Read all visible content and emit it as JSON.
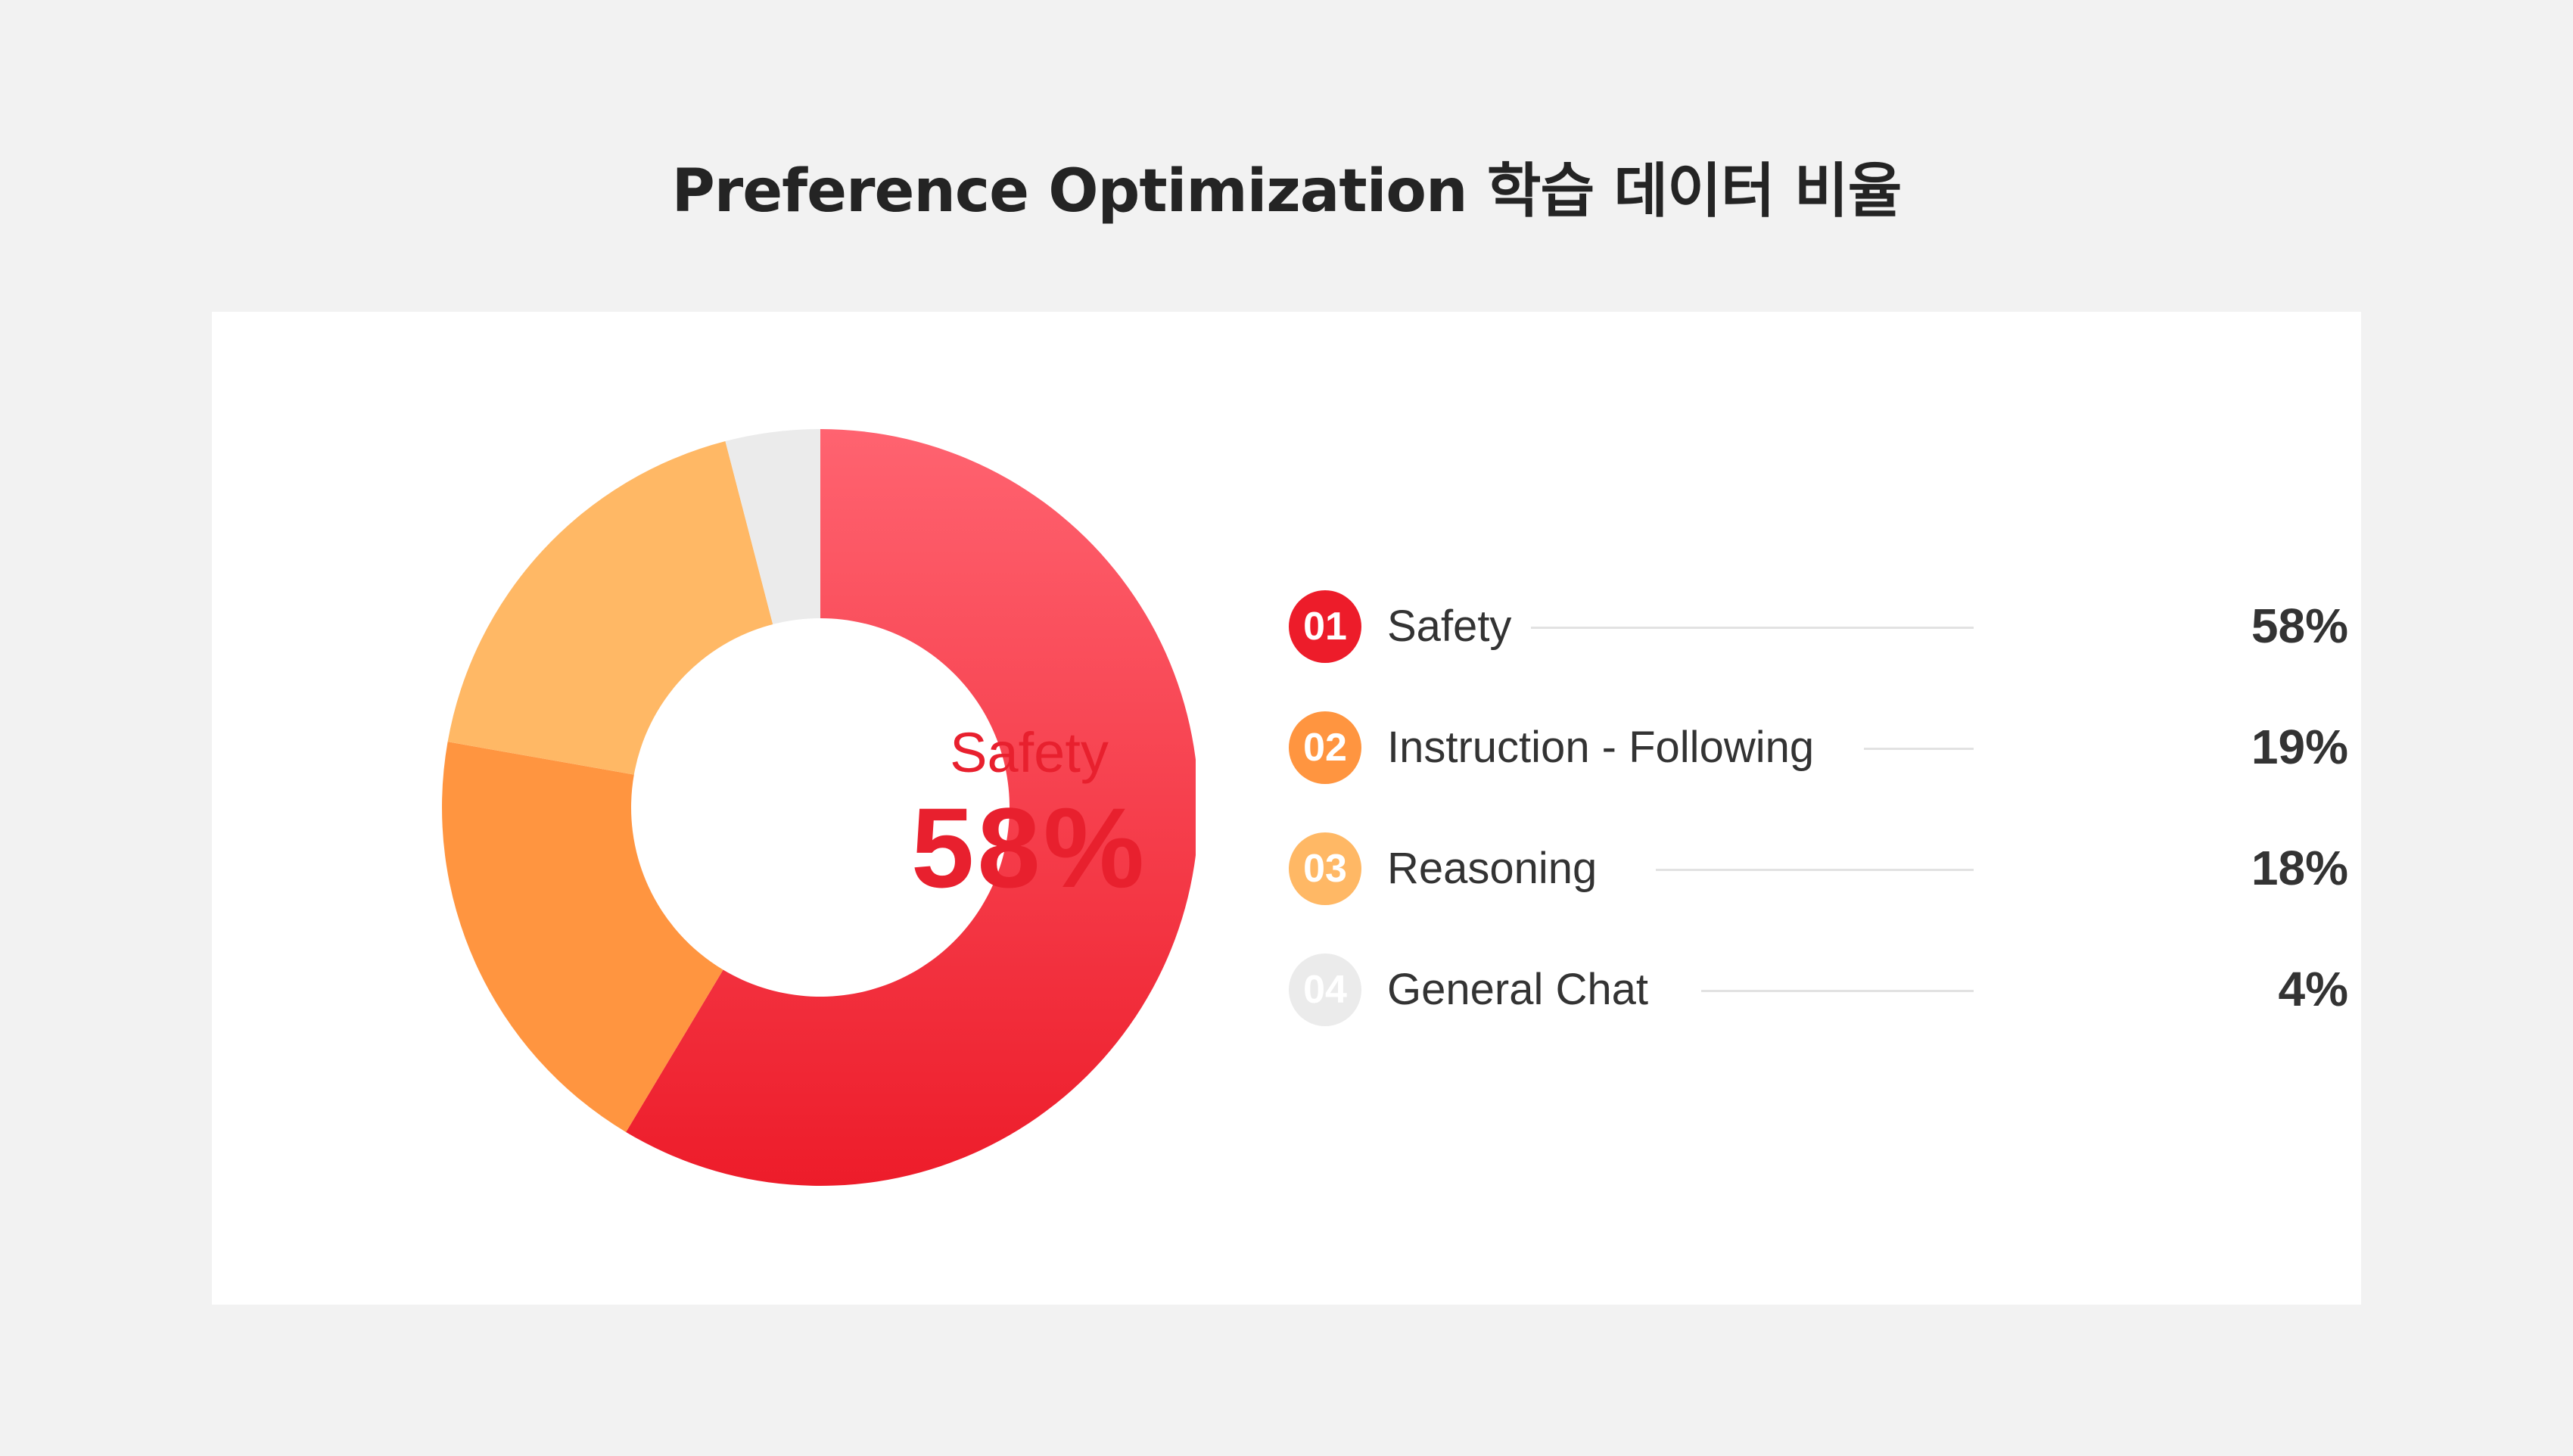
{
  "title": "Preference Optimization 학습 데이터 비율",
  "center": {
    "label": "Safety",
    "value": "58%"
  },
  "legend": [
    {
      "number": "01",
      "label": "Safety",
      "value": "58%"
    },
    {
      "number": "02",
      "label": "Instruction - Following",
      "value": "19%"
    },
    {
      "number": "03",
      "label": "Reasoning",
      "value": "18%"
    },
    {
      "number": "04",
      "label": "General Chat",
      "value": "4%"
    }
  ],
  "colors": {
    "safety": "#ed1c2a",
    "safety_light": "#ff6370",
    "instruction_following": "#ff9540",
    "reasoning": "#ffb865",
    "general_chat": "#ebebeb"
  },
  "chart_data": {
    "type": "pie",
    "categories": [
      "Safety",
      "Instruction - Following",
      "Reasoning",
      "General Chat"
    ],
    "values": [
      58,
      19,
      18,
      4
    ],
    "unit": "%",
    "donut": true,
    "title": "Preference Optimization 학습 데이터 비율",
    "legend": "right"
  }
}
